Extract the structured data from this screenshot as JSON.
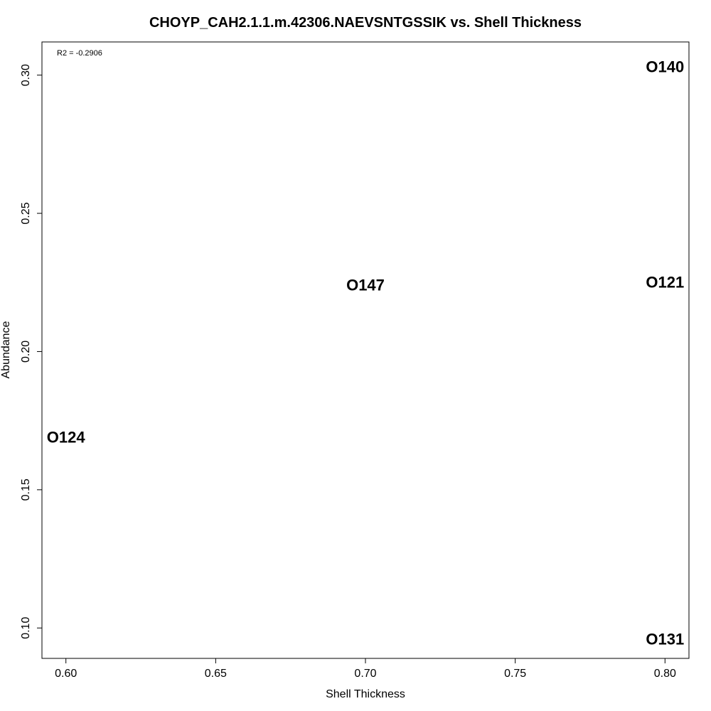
{
  "chart_data": {
    "type": "scatter",
    "title": "CHOYP_CAH2.1.1.m.42306.NAEVSNTGSSIK vs. Shell Thickness",
    "xlabel": "Shell Thickness",
    "ylabel": "Abundance",
    "xlim": [
      0.592,
      0.808
    ],
    "ylim": [
      0.089,
      0.312
    ],
    "x_ticks": [
      "0.60",
      "0.65",
      "0.70",
      "0.75",
      "0.80"
    ],
    "y_ticks": [
      "0.10",
      "0.15",
      "0.20",
      "0.25",
      "0.30"
    ],
    "annotation": "R2 = -0.2906",
    "grid": false,
    "points": [
      {
        "label": "O140",
        "x": 0.8,
        "y": 0.303
      },
      {
        "label": "O121",
        "x": 0.8,
        "y": 0.225
      },
      {
        "label": "O147",
        "x": 0.7,
        "y": 0.224
      },
      {
        "label": "O124",
        "x": 0.6,
        "y": 0.169
      },
      {
        "label": "O131",
        "x": 0.8,
        "y": 0.096
      }
    ]
  }
}
